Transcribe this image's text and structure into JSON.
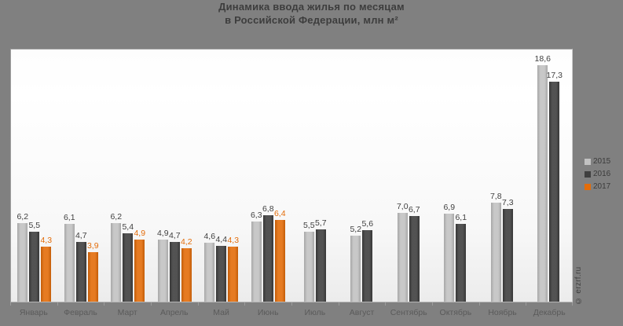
{
  "title": {
    "line1": "Динамика ввода жилья по месяцам",
    "line2": "в Российской Федерации, млн м²"
  },
  "watermark": "© erzrf.ru",
  "colors": {
    "background": "#808080",
    "plot_background_top": "#ffffff",
    "plot_background_bottom": "#ececec",
    "series_2015": "#c2c2c2",
    "series_2016": "#3f3f3f",
    "series_2017": "#e36c09",
    "value_label_default": "#404040",
    "value_label_2017": "#e36c09",
    "month_label": "#5a5a5a",
    "title_text": "#3d3d3d"
  },
  "chart_data": {
    "type": "bar",
    "title": "Динамика ввода жилья по месяцам в Российской Федерации, млн м²",
    "xlabel": "",
    "ylabel": "млн м²",
    "ylim": [
      0,
      19.9
    ],
    "grid": false,
    "legend_position": "right",
    "value_labels": true,
    "decimal_separator": ",",
    "categories": [
      "Январь",
      "Февраль",
      "Март",
      "Апрель",
      "Май",
      "Июнь",
      "Июль",
      "Август",
      "Сентябрь",
      "Октябрь",
      "Ноябрь",
      "Декабрь"
    ],
    "series": [
      {
        "name": "2015",
        "color": "#c2c2c2",
        "label_color": "#404040",
        "values": [
          6.2,
          6.1,
          6.2,
          4.9,
          4.6,
          6.3,
          5.5,
          5.2,
          7.0,
          6.9,
          7.8,
          18.6
        ]
      },
      {
        "name": "2016",
        "color": "#3f3f3f",
        "label_color": "#404040",
        "values": [
          5.5,
          4.7,
          5.4,
          4.7,
          4.4,
          6.8,
          5.7,
          5.6,
          6.7,
          6.1,
          7.3,
          17.3
        ]
      },
      {
        "name": "2017",
        "color": "#e36c09",
        "label_color": "#e36c09",
        "values": [
          4.3,
          3.9,
          4.9,
          4.2,
          4.3,
          6.4,
          null,
          null,
          null,
          null,
          null,
          null
        ]
      }
    ]
  }
}
